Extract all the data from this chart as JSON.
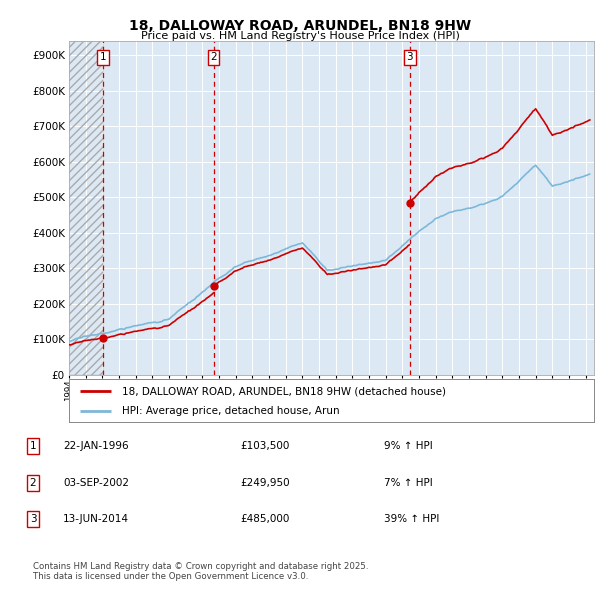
{
  "title": "18, DALLOWAY ROAD, ARUNDEL, BN18 9HW",
  "subtitle": "Price paid vs. HM Land Registry's House Price Index (HPI)",
  "xlim": [
    1994.0,
    2025.5
  ],
  "ylim": [
    0,
    940000
  ],
  "yticks": [
    0,
    100000,
    200000,
    300000,
    400000,
    500000,
    600000,
    700000,
    800000,
    900000
  ],
  "ytick_labels": [
    "£0",
    "£100K",
    "£200K",
    "£300K",
    "£400K",
    "£500K",
    "£600K",
    "£700K",
    "£800K",
    "£900K"
  ],
  "sale_dates": [
    1996.06,
    2002.67,
    2014.45
  ],
  "sale_prices": [
    103500,
    249950,
    485000
  ],
  "sale_labels": [
    "1",
    "2",
    "3"
  ],
  "hpi_color": "#7db8d8",
  "price_color": "#cc0000",
  "vline_color": "#cc0000",
  "plot_bg_color": "#dce9f5",
  "legend_label_price": "18, DALLOWAY ROAD, ARUNDEL, BN18 9HW (detached house)",
  "legend_label_hpi": "HPI: Average price, detached house, Arun",
  "table_entries": [
    [
      "1",
      "22-JAN-1996",
      "£103,500",
      "9% ↑ HPI"
    ],
    [
      "2",
      "03-SEP-2002",
      "£249,950",
      "7% ↑ HPI"
    ],
    [
      "3",
      "13-JUN-2014",
      "£485,000",
      "39% ↑ HPI"
    ]
  ],
  "footnote": "Contains HM Land Registry data © Crown copyright and database right 2025.\nThis data is licensed under the Open Government Licence v3.0.",
  "background_color": "#ffffff",
  "grid_color": "#ffffff"
}
